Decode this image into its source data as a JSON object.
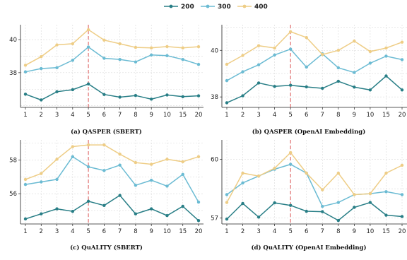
{
  "legend": [
    {
      "name": "200",
      "color": "#287e86"
    },
    {
      "name": "300",
      "color": "#6bbbd3"
    },
    {
      "name": "400",
      "color": "#eecd86"
    }
  ],
  "chart_data": [
    {
      "type": "line",
      "caption": "(a) QASPER (SBERT)",
      "categories": [
        "1",
        "2",
        "3",
        "4",
        "5",
        "6",
        "7",
        "8",
        "9",
        "10",
        "15",
        "20"
      ],
      "yticks": [
        38,
        40
      ],
      "ylim": [
        35.9,
        40.9
      ],
      "vline_category": "5",
      "grid": true,
      "series": [
        {
          "name": "200",
          "values": [
            36.7,
            36.35,
            36.85,
            36.97,
            37.32,
            36.68,
            36.52,
            36.62,
            36.4,
            36.65,
            36.55,
            36.6
          ]
        },
        {
          "name": "300",
          "values": [
            38.05,
            38.25,
            38.3,
            38.75,
            39.55,
            38.87,
            38.8,
            38.65,
            39.07,
            39.03,
            38.8,
            38.5
          ]
        },
        {
          "name": "400",
          "values": [
            38.45,
            38.97,
            39.68,
            39.75,
            40.6,
            39.97,
            39.75,
            39.53,
            39.5,
            39.58,
            39.5,
            39.57
          ]
        }
      ]
    },
    {
      "type": "line",
      "caption": "(b) QASPER (OpenAI Embedding)",
      "categories": [
        "1",
        "2",
        "3",
        "4",
        "5",
        "6",
        "7",
        "8",
        "9",
        "10",
        "15",
        "20"
      ],
      "yticks": [
        38,
        40
      ],
      "ylim": [
        37.55,
        41.1
      ],
      "vline_category": "5",
      "grid": true,
      "series": [
        {
          "name": "200",
          "values": [
            37.75,
            38.05,
            38.6,
            38.45,
            38.5,
            38.43,
            38.37,
            38.67,
            38.42,
            38.3,
            38.9,
            38.3
          ]
        },
        {
          "name": "300",
          "values": [
            38.7,
            39.08,
            39.38,
            39.8,
            40.05,
            39.28,
            39.85,
            39.25,
            39.05,
            39.45,
            39.75,
            39.6
          ]
        },
        {
          "name": "400",
          "values": [
            39.4,
            39.78,
            40.2,
            40.1,
            40.8,
            40.55,
            39.82,
            40.0,
            40.4,
            39.95,
            40.1,
            40.35
          ]
        }
      ]
    },
    {
      "type": "line",
      "caption": "(c) QuALITY (SBERT)",
      "categories": [
        "1",
        "2",
        "3",
        "4",
        "5",
        "6",
        "7",
        "8",
        "9",
        "10",
        "15",
        "20"
      ],
      "yticks": [
        56,
        58
      ],
      "ylim": [
        54.2,
        59.2
      ],
      "vline_category": "5",
      "grid": true,
      "series": [
        {
          "name": "200",
          "values": [
            54.5,
            54.8,
            55.1,
            54.95,
            55.55,
            55.3,
            55.9,
            54.8,
            55.1,
            54.7,
            55.25,
            54.4
          ]
        },
        {
          "name": "300",
          "values": [
            56.55,
            56.7,
            56.85,
            58.2,
            57.6,
            57.38,
            57.7,
            56.5,
            56.8,
            56.45,
            57.15,
            55.5
          ]
        },
        {
          "name": "400",
          "values": [
            56.85,
            57.2,
            58.05,
            58.8,
            58.9,
            58.9,
            58.35,
            57.85,
            57.75,
            58.05,
            57.9,
            58.2
          ]
        }
      ]
    },
    {
      "type": "line",
      "caption": "(d) QuALITY (OpenAI Embedding)",
      "categories": [
        "1",
        "2",
        "3",
        "4",
        "5",
        "6",
        "7",
        "8",
        "9",
        "10",
        "15",
        "20"
      ],
      "yticks": [
        57,
        60
      ],
      "ylim": [
        56.7,
        61.0
      ],
      "vline_category": "5",
      "grid": true,
      "series": [
        {
          "name": "200",
          "values": [
            56.95,
            57.75,
            57.05,
            57.78,
            57.65,
            57.35,
            57.33,
            56.88,
            57.55,
            57.8,
            57.15,
            57.08
          ]
        },
        {
          "name": "300",
          "values": [
            58.2,
            58.8,
            59.15,
            59.5,
            59.75,
            59.3,
            57.6,
            57.8,
            58.2,
            58.25,
            58.35,
            58.2
          ]
        },
        {
          "name": "400",
          "values": [
            57.8,
            59.3,
            59.15,
            59.55,
            60.35,
            59.3,
            58.45,
            59.3,
            58.2,
            58.25,
            59.3,
            59.7
          ]
        }
      ]
    }
  ]
}
